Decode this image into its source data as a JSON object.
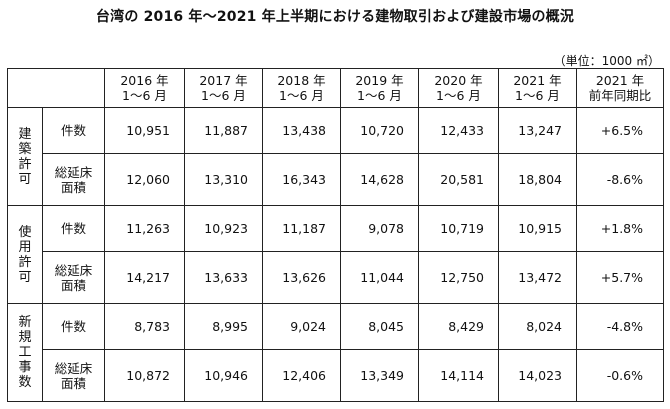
{
  "title": "台湾の 2016 年～2021 年上半期における建物取引および建設市場の概況",
  "unit": "（単位：1000 ㎡）",
  "columns": [
    {
      "line1": "2016 年",
      "line2": "1～6 月"
    },
    {
      "line1": "2017 年",
      "line2": "1～6 月"
    },
    {
      "line1": "2018 年",
      "line2": "1～6 月"
    },
    {
      "line1": "2019 年",
      "line2": "1～6 月"
    },
    {
      "line1": "2020 年",
      "line2": "1～6 月"
    },
    {
      "line1": "2021 年",
      "line2": "1～6 月"
    },
    {
      "line1": "2021 年",
      "line2": "前年同期比"
    }
  ],
  "groups": [
    {
      "label": [
        "建",
        "築",
        "許",
        "可"
      ],
      "rows": [
        {
          "label": "件数",
          "values": [
            "10,951",
            "11,887",
            "13,438",
            "10,720",
            "12,433",
            "13,247"
          ],
          "ratio": "+6.5%"
        },
        {
          "label": "総延床面積",
          "values": [
            "12,060",
            "13,310",
            "16,343",
            "14,628",
            "20,581",
            "18,804"
          ],
          "ratio": "-8.6%"
        }
      ]
    },
    {
      "label": [
        "使",
        "用",
        "許",
        "可"
      ],
      "rows": [
        {
          "label": "件数",
          "values": [
            "11,263",
            "10,923",
            "11,187",
            "9,078",
            "10,719",
            "10,915"
          ],
          "ratio": "+1.8%"
        },
        {
          "label": "総延床面積",
          "values": [
            "14,217",
            "13,633",
            "13,626",
            "11,044",
            "12,750",
            "13,472"
          ],
          "ratio": "+5.7%"
        }
      ]
    },
    {
      "label": [
        "新",
        "規",
        "工",
        "事",
        "数"
      ],
      "rows": [
        {
          "label": "件数",
          "values": [
            "8,783",
            "8,995",
            "9,024",
            "8,045",
            "8,429",
            "8,024"
          ],
          "ratio": "-4.8%"
        },
        {
          "label": "総延床面積",
          "values": [
            "10,872",
            "10,946",
            "12,406",
            "13,349",
            "14,114",
            "14,023"
          ],
          "ratio": "-0.6%"
        }
      ]
    }
  ]
}
